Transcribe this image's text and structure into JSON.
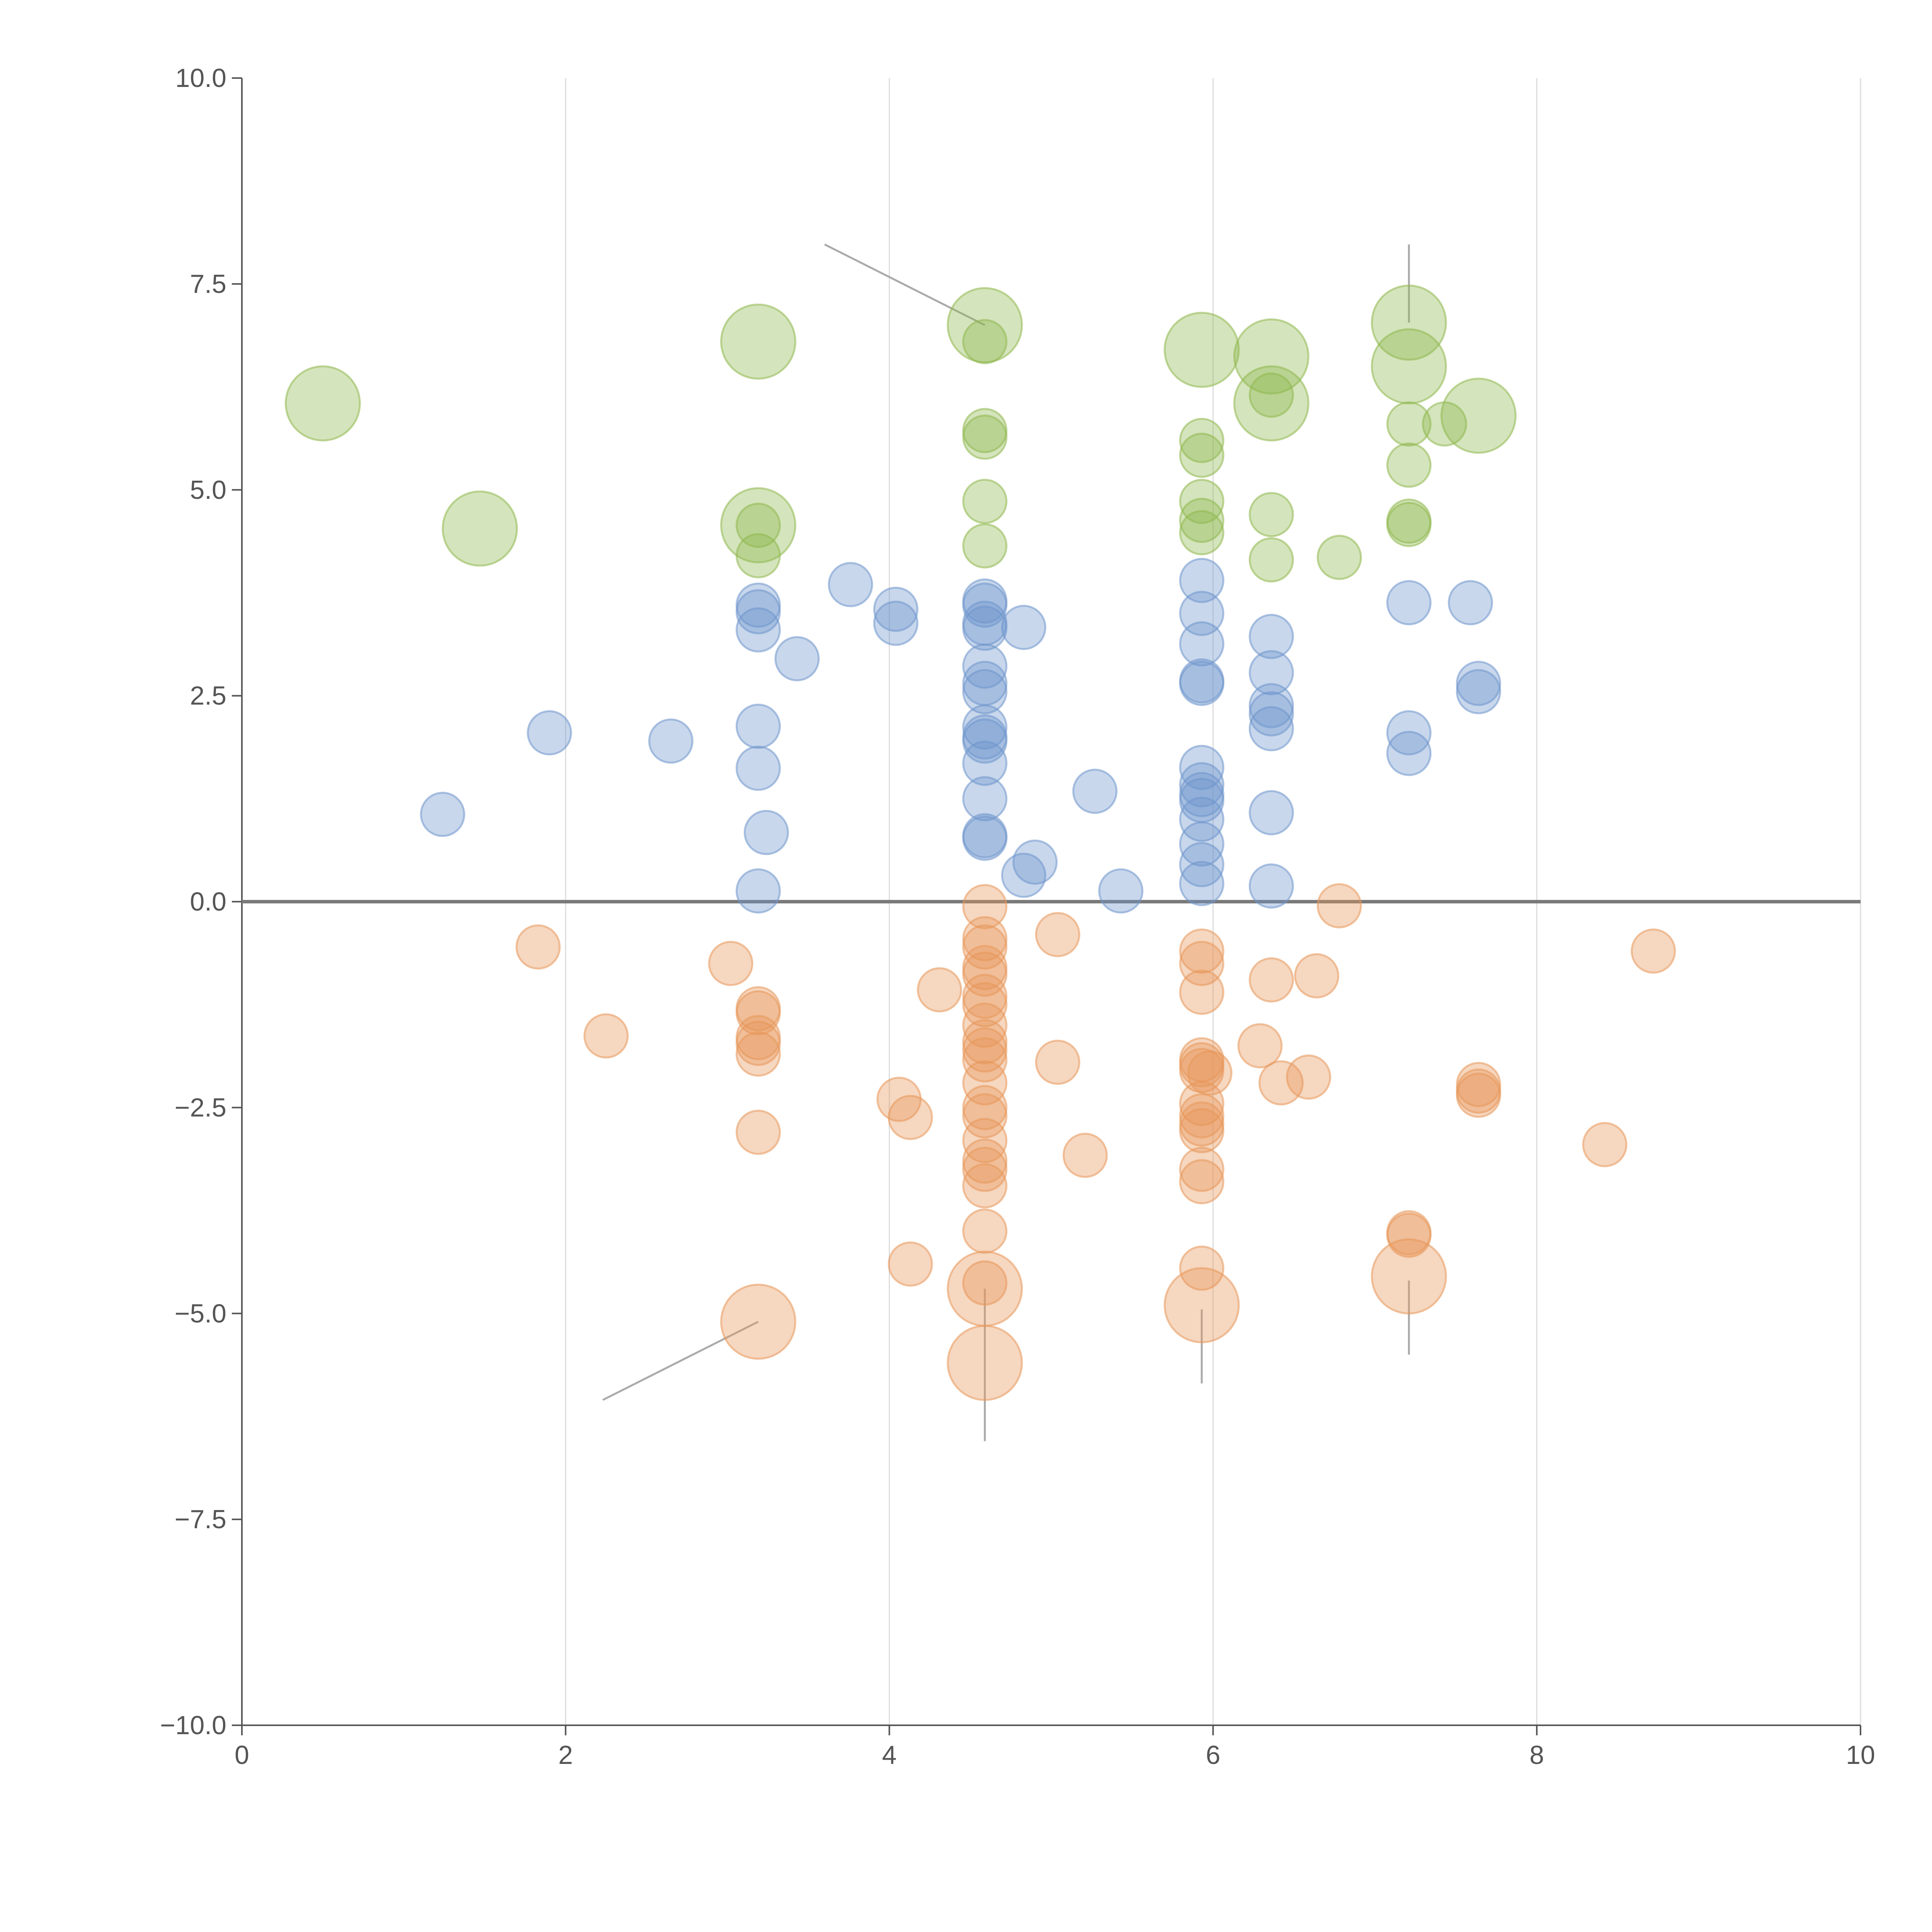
{
  "chart_data": {
    "type": "scatter",
    "title": "",
    "xlabel": "",
    "ylabel": "",
    "xlim": [
      0,
      10
    ],
    "ylim": [
      -10,
      10
    ],
    "x_ticks": [
      0,
      2,
      4,
      6,
      8,
      10
    ],
    "y_ticks": [
      10.0,
      7.5,
      5.0,
      2.5,
      0.0,
      -2.5,
      -5.0,
      -7.5,
      -10.0
    ],
    "x_tick_labels": [
      "0",
      "2",
      "4",
      "6",
      "8",
      "10"
    ],
    "y_tick_labels": [
      "10.0",
      "7.5",
      "5.0",
      "2.5",
      "0.0",
      "−2.5",
      "−5.0",
      "−7.5",
      "−10.0"
    ],
    "grid": {
      "vertical": true,
      "horizontal": false
    },
    "reference_line_y": 0,
    "legend": null,
    "series": [
      {
        "name": "green",
        "color": "#8fb84e",
        "points": [
          {
            "x": 0.5,
            "y": 6.05,
            "s": 2
          },
          {
            "x": 1.47,
            "y": 4.53,
            "s": 2
          },
          {
            "x": 3.19,
            "y": 6.8,
            "s": 2
          },
          {
            "x": 3.19,
            "y": 4.57,
            "s": 2
          },
          {
            "x": 3.19,
            "y": 4.57,
            "s": 1
          },
          {
            "x": 3.19,
            "y": 4.2,
            "s": 1
          },
          {
            "x": 4.59,
            "y": 7.0,
            "s": 2
          },
          {
            "x": 4.59,
            "y": 6.8,
            "s": 1
          },
          {
            "x": 4.59,
            "y": 5.72,
            "s": 1
          },
          {
            "x": 4.59,
            "y": 5.64,
            "s": 1
          },
          {
            "x": 4.59,
            "y": 4.86,
            "s": 1
          },
          {
            "x": 4.59,
            "y": 4.32,
            "s": 1
          },
          {
            "x": 5.93,
            "y": 6.7,
            "s": 2
          },
          {
            "x": 5.93,
            "y": 5.6,
            "s": 1
          },
          {
            "x": 5.93,
            "y": 5.42,
            "s": 1
          },
          {
            "x": 5.93,
            "y": 4.86,
            "s": 1
          },
          {
            "x": 5.93,
            "y": 4.63,
            "s": 1
          },
          {
            "x": 5.93,
            "y": 4.48,
            "s": 1
          },
          {
            "x": 6.36,
            "y": 6.62,
            "s": 2
          },
          {
            "x": 6.36,
            "y": 6.05,
            "s": 2
          },
          {
            "x": 6.36,
            "y": 6.15,
            "s": 1
          },
          {
            "x": 6.36,
            "y": 4.7,
            "s": 1
          },
          {
            "x": 6.36,
            "y": 4.15,
            "s": 1
          },
          {
            "x": 6.78,
            "y": 4.18,
            "s": 1
          },
          {
            "x": 7.21,
            "y": 7.03,
            "s": 2
          },
          {
            "x": 7.21,
            "y": 6.5,
            "s": 2
          },
          {
            "x": 7.21,
            "y": 5.8,
            "s": 1
          },
          {
            "x": 7.21,
            "y": 5.3,
            "s": 1
          },
          {
            "x": 7.21,
            "y": 4.62,
            "s": 1
          },
          {
            "x": 7.21,
            "y": 4.58,
            "s": 1
          },
          {
            "x": 7.43,
            "y": 5.8,
            "s": 1
          },
          {
            "x": 7.64,
            "y": 5.9,
            "s": 2
          }
        ]
      },
      {
        "name": "blue",
        "color": "#6f95cc",
        "points": [
          {
            "x": 1.24,
            "y": 1.06,
            "s": 1
          },
          {
            "x": 1.9,
            "y": 2.05,
            "s": 1
          },
          {
            "x": 2.65,
            "y": 1.95,
            "s": 1
          },
          {
            "x": 3.19,
            "y": 3.6,
            "s": 1
          },
          {
            "x": 3.19,
            "y": 3.52,
            "s": 1
          },
          {
            "x": 3.19,
            "y": 3.3,
            "s": 1
          },
          {
            "x": 3.19,
            "y": 2.13,
            "s": 1
          },
          {
            "x": 3.19,
            "y": 1.62,
            "s": 1
          },
          {
            "x": 3.19,
            "y": 0.13,
            "s": 1
          },
          {
            "x": 3.24,
            "y": 0.84,
            "s": 1
          },
          {
            "x": 3.43,
            "y": 2.95,
            "s": 1
          },
          {
            "x": 3.76,
            "y": 3.85,
            "s": 1
          },
          {
            "x": 4.04,
            "y": 3.55,
            "s": 1
          },
          {
            "x": 4.04,
            "y": 3.38,
            "s": 1
          },
          {
            "x": 4.59,
            "y": 3.65,
            "s": 1
          },
          {
            "x": 4.59,
            "y": 3.6,
            "s": 1
          },
          {
            "x": 4.59,
            "y": 3.38,
            "s": 1
          },
          {
            "x": 4.59,
            "y": 3.32,
            "s": 1
          },
          {
            "x": 4.59,
            "y": 2.86,
            "s": 1
          },
          {
            "x": 4.59,
            "y": 2.65,
            "s": 1
          },
          {
            "x": 4.59,
            "y": 2.55,
            "s": 1
          },
          {
            "x": 4.59,
            "y": 2.12,
            "s": 1
          },
          {
            "x": 4.59,
            "y": 2.0,
            "s": 1
          },
          {
            "x": 4.59,
            "y": 1.95,
            "s": 1
          },
          {
            "x": 4.59,
            "y": 1.68,
            "s": 1
          },
          {
            "x": 4.59,
            "y": 1.25,
            "s": 1
          },
          {
            "x": 4.59,
            "y": 0.8,
            "s": 1
          },
          {
            "x": 4.59,
            "y": 0.77,
            "s": 1
          },
          {
            "x": 4.83,
            "y": 3.33,
            "s": 1
          },
          {
            "x": 4.83,
            "y": 0.32,
            "s": 1
          },
          {
            "x": 4.9,
            "y": 0.48,
            "s": 1
          },
          {
            "x": 5.27,
            "y": 1.34,
            "s": 1
          },
          {
            "x": 5.43,
            "y": 0.13,
            "s": 1
          },
          {
            "x": 5.93,
            "y": 3.9,
            "s": 1
          },
          {
            "x": 5.93,
            "y": 3.5,
            "s": 1
          },
          {
            "x": 5.93,
            "y": 3.13,
            "s": 1
          },
          {
            "x": 5.93,
            "y": 2.68,
            "s": 1
          },
          {
            "x": 5.93,
            "y": 2.65,
            "s": 1
          },
          {
            "x": 5.93,
            "y": 1.63,
            "s": 1
          },
          {
            "x": 5.93,
            "y": 1.42,
            "s": 1
          },
          {
            "x": 5.93,
            "y": 1.3,
            "s": 1
          },
          {
            "x": 5.93,
            "y": 1.23,
            "s": 1
          },
          {
            "x": 5.93,
            "y": 1.0,
            "s": 1
          },
          {
            "x": 5.93,
            "y": 0.7,
            "s": 1
          },
          {
            "x": 5.93,
            "y": 0.45,
            "s": 1
          },
          {
            "x": 5.93,
            "y": 0.22,
            "s": 1
          },
          {
            "x": 6.36,
            "y": 3.22,
            "s": 1
          },
          {
            "x": 6.36,
            "y": 2.78,
            "s": 1
          },
          {
            "x": 6.36,
            "y": 2.38,
            "s": 1
          },
          {
            "x": 6.36,
            "y": 2.28,
            "s": 1
          },
          {
            "x": 6.36,
            "y": 2.1,
            "s": 1
          },
          {
            "x": 6.36,
            "y": 1.08,
            "s": 1
          },
          {
            "x": 6.36,
            "y": 0.19,
            "s": 1
          },
          {
            "x": 7.21,
            "y": 3.63,
            "s": 1
          },
          {
            "x": 7.21,
            "y": 2.05,
            "s": 1
          },
          {
            "x": 7.21,
            "y": 1.8,
            "s": 1
          },
          {
            "x": 7.59,
            "y": 3.63,
            "s": 1
          },
          {
            "x": 7.64,
            "y": 2.65,
            "s": 1
          },
          {
            "x": 7.64,
            "y": 2.55,
            "s": 1
          }
        ]
      },
      {
        "name": "orange",
        "color": "#e8975a",
        "points": [
          {
            "x": 1.83,
            "y": -0.55,
            "s": 1
          },
          {
            "x": 2.25,
            "y": -1.63,
            "s": 1
          },
          {
            "x": 3.02,
            "y": -0.75,
            "s": 1
          },
          {
            "x": 3.19,
            "y": -1.3,
            "s": 1
          },
          {
            "x": 3.19,
            "y": -1.35,
            "s": 1
          },
          {
            "x": 3.19,
            "y": -1.65,
            "s": 1
          },
          {
            "x": 3.19,
            "y": -1.72,
            "s": 1
          },
          {
            "x": 3.19,
            "y": -1.85,
            "s": 1
          },
          {
            "x": 3.19,
            "y": -2.8,
            "s": 1
          },
          {
            "x": 3.19,
            "y": -5.1,
            "s": 2
          },
          {
            "x": 4.06,
            "y": -2.4,
            "s": 1
          },
          {
            "x": 4.13,
            "y": -2.62,
            "s": 1
          },
          {
            "x": 4.13,
            "y": -4.4,
            "s": 1
          },
          {
            "x": 4.31,
            "y": -1.07,
            "s": 1
          },
          {
            "x": 4.59,
            "y": -0.06,
            "s": 1
          },
          {
            "x": 4.59,
            "y": -0.45,
            "s": 1
          },
          {
            "x": 4.59,
            "y": -0.55,
            "s": 1
          },
          {
            "x": 4.59,
            "y": -0.8,
            "s": 1
          },
          {
            "x": 4.59,
            "y": -0.88,
            "s": 1
          },
          {
            "x": 4.59,
            "y": -1.15,
            "s": 1
          },
          {
            "x": 4.59,
            "y": -1.25,
            "s": 1
          },
          {
            "x": 4.59,
            "y": -1.5,
            "s": 1
          },
          {
            "x": 4.59,
            "y": -1.7,
            "s": 1
          },
          {
            "x": 4.59,
            "y": -1.8,
            "s": 1
          },
          {
            "x": 4.59,
            "y": -1.92,
            "s": 1
          },
          {
            "x": 4.59,
            "y": -2.2,
            "s": 1
          },
          {
            "x": 4.59,
            "y": -2.5,
            "s": 1
          },
          {
            "x": 4.59,
            "y": -2.6,
            "s": 1
          },
          {
            "x": 4.59,
            "y": -2.9,
            "s": 1
          },
          {
            "x": 4.59,
            "y": -3.15,
            "s": 1
          },
          {
            "x": 4.59,
            "y": -3.25,
            "s": 1
          },
          {
            "x": 4.59,
            "y": -3.45,
            "s": 1
          },
          {
            "x": 4.59,
            "y": -4.0,
            "s": 1
          },
          {
            "x": 4.59,
            "y": -4.63,
            "s": 1
          },
          {
            "x": 4.59,
            "y": -4.7,
            "s": 2
          },
          {
            "x": 4.59,
            "y": -5.6,
            "s": 2
          },
          {
            "x": 5.04,
            "y": -0.4,
            "s": 1
          },
          {
            "x": 5.04,
            "y": -1.95,
            "s": 1
          },
          {
            "x": 5.21,
            "y": -3.08,
            "s": 1
          },
          {
            "x": 5.93,
            "y": -0.6,
            "s": 1
          },
          {
            "x": 5.93,
            "y": -0.75,
            "s": 1
          },
          {
            "x": 5.93,
            "y": -1.1,
            "s": 1
          },
          {
            "x": 5.93,
            "y": -1.92,
            "s": 1
          },
          {
            "x": 5.93,
            "y": -1.98,
            "s": 1
          },
          {
            "x": 5.93,
            "y": -2.05,
            "s": 1
          },
          {
            "x": 5.93,
            "y": -2.45,
            "s": 1
          },
          {
            "x": 5.93,
            "y": -2.6,
            "s": 1
          },
          {
            "x": 5.93,
            "y": -2.7,
            "s": 1
          },
          {
            "x": 5.93,
            "y": -2.78,
            "s": 1
          },
          {
            "x": 5.93,
            "y": -3.25,
            "s": 1
          },
          {
            "x": 5.93,
            "y": -3.4,
            "s": 1
          },
          {
            "x": 5.93,
            "y": -4.45,
            "s": 1
          },
          {
            "x": 5.93,
            "y": -4.9,
            "s": 2
          },
          {
            "x": 5.98,
            "y": -2.08,
            "s": 1
          },
          {
            "x": 6.29,
            "y": -1.75,
            "s": 1
          },
          {
            "x": 6.36,
            "y": -0.95,
            "s": 1
          },
          {
            "x": 6.42,
            "y": -2.2,
            "s": 1
          },
          {
            "x": 6.59,
            "y": -2.13,
            "s": 1
          },
          {
            "x": 6.64,
            "y": -0.9,
            "s": 1
          },
          {
            "x": 6.78,
            "y": -0.05,
            "s": 1
          },
          {
            "x": 7.21,
            "y": -4.02,
            "s": 1
          },
          {
            "x": 7.21,
            "y": -4.05,
            "s": 1
          },
          {
            "x": 7.21,
            "y": -4.55,
            "s": 2
          },
          {
            "x": 7.64,
            "y": -2.22,
            "s": 1
          },
          {
            "x": 7.64,
            "y": -2.3,
            "s": 1
          },
          {
            "x": 7.64,
            "y": -2.35,
            "s": 1
          },
          {
            "x": 8.42,
            "y": -2.95,
            "s": 1
          },
          {
            "x": 8.72,
            "y": -0.6,
            "s": 1
          }
        ]
      }
    ],
    "annotations": [
      {
        "label": "",
        "x": 4.59,
        "y": 7.0,
        "lx": 3.6,
        "ly": 7.98
      },
      {
        "label": "",
        "x": 7.21,
        "y": 7.03,
        "lx": 7.21,
        "ly": 7.98
      },
      {
        "label": "",
        "x": 3.19,
        "y": -5.1,
        "lx": 2.23,
        "ly": -6.05
      },
      {
        "label": "",
        "x": 4.59,
        "y": -4.7,
        "lx": 4.59,
        "ly": -6.55
      },
      {
        "label": "",
        "x": 5.93,
        "y": -4.95,
        "lx": 5.93,
        "ly": -5.85
      },
      {
        "label": "",
        "x": 7.21,
        "y": -4.6,
        "lx": 7.21,
        "ly": -5.5
      }
    ]
  }
}
